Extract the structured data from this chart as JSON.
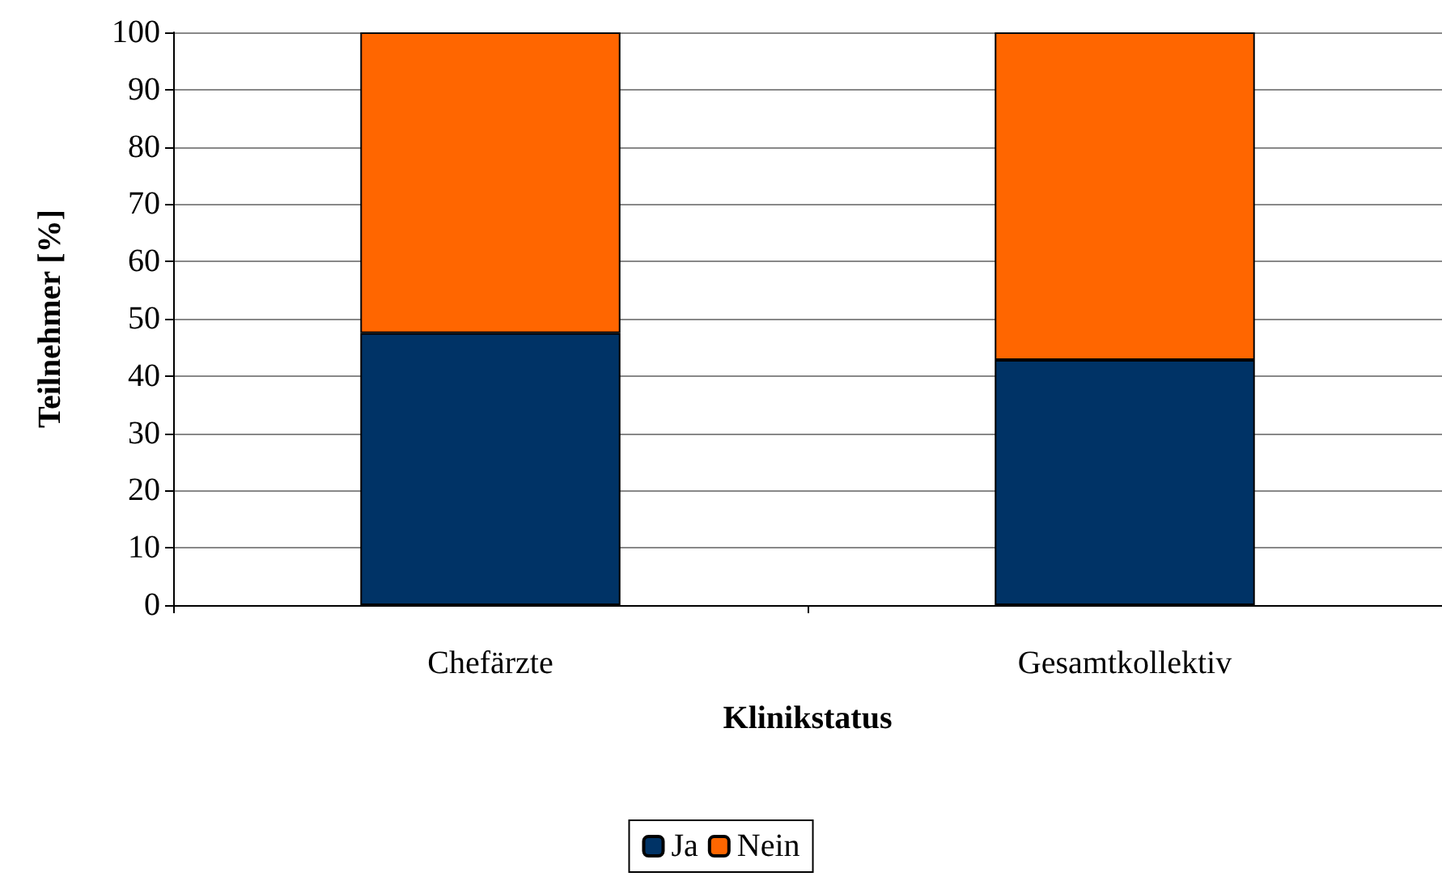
{
  "chart_data": {
    "type": "bar",
    "stacked": true,
    "xlabel": "Klinikstatus",
    "ylabel": "Teilnehmer [%]",
    "categories": [
      "Chefärzte",
      "Gesamtkollektiv"
    ],
    "series": [
      {
        "name": "Ja",
        "color": "#003366",
        "values": [
          47.5,
          42.8
        ]
      },
      {
        "name": "Nein",
        "color": "#ff6600",
        "values": [
          52.5,
          57.2
        ]
      }
    ],
    "ylim": [
      0,
      100
    ],
    "yticks": [
      0,
      10,
      20,
      30,
      40,
      50,
      60,
      70,
      80,
      90,
      100
    ],
    "grid": "y",
    "legend": "bottom"
  }
}
